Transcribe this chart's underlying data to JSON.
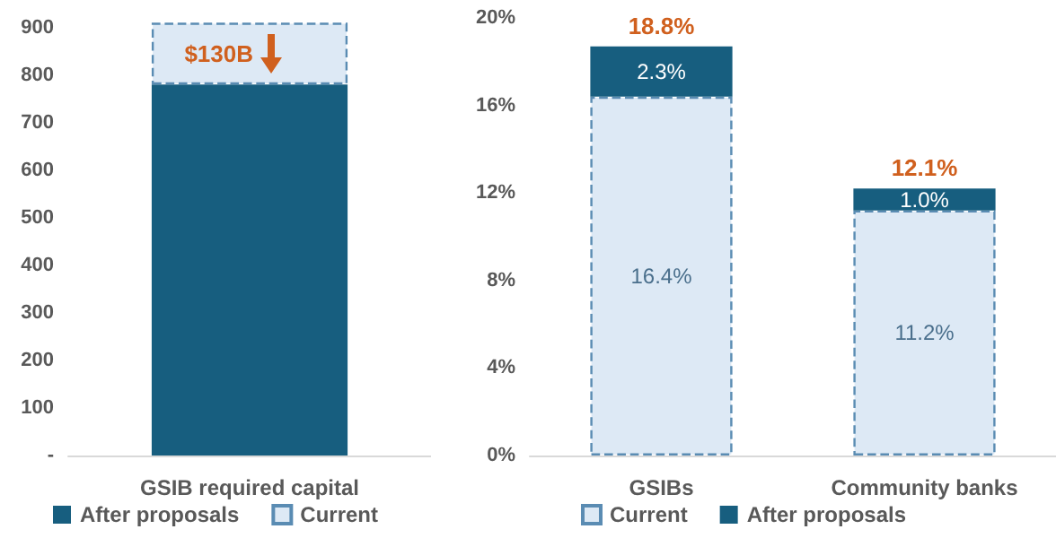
{
  "chart_data": [
    {
      "type": "bar",
      "categories": [
        "GSIB required capital"
      ],
      "stacked": true,
      "series": [
        {
          "name": "After proposals",
          "color": "#175e7f",
          "values": [
            780
          ]
        },
        {
          "name": "Current",
          "color": "#dde9f5",
          "line_style": "dashed",
          "values": [
            130
          ]
        }
      ],
      "ylim": [
        0,
        920
      ],
      "yticks": [
        {
          "value": 0,
          "label": "-"
        },
        100,
        200,
        300,
        400,
        500,
        600,
        700,
        800,
        900
      ],
      "annotations": [
        "$130B"
      ],
      "grid": false,
      "legend": "bottom"
    },
    {
      "type": "bar",
      "categories": [
        "GSIBs",
        "Community banks"
      ],
      "stacked": true,
      "series": [
        {
          "name": "Current",
          "color": "#dde9f5",
          "line_style": "dashed",
          "values": [
            16.4,
            11.2
          ],
          "value_labels": [
            "16.4%",
            "11.2%"
          ]
        },
        {
          "name": "After proposals",
          "color": "#175e7f",
          "values": [
            2.3,
            1.0
          ],
          "value_labels": [
            "2.3%",
            "1.0%"
          ]
        }
      ],
      "totals": [
        "18.8%",
        "12.1%"
      ],
      "ylim": [
        0,
        20
      ],
      "yticks": [
        {
          "value": 0,
          "label": "0%"
        },
        {
          "value": 4,
          "label": "4%"
        },
        {
          "value": 8,
          "label": "8%"
        },
        {
          "value": 12,
          "label": "12%"
        },
        {
          "value": 16,
          "label": "16%"
        },
        {
          "value": 20,
          "label": "20%"
        }
      ],
      "grid": false,
      "legend": "bottom"
    }
  ]
}
